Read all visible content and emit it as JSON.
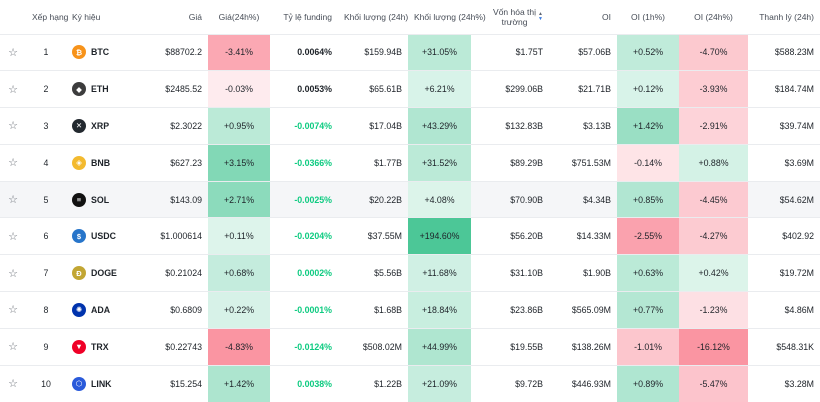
{
  "headers": {
    "rank": "Xếp hạng",
    "symbol": "Ký hiệu",
    "price": "Giá",
    "price_change": "Giá(24h%)",
    "funding": "Tỷ lệ funding",
    "volume": "Khối lượng (24h)",
    "volume_change": "Khối lượng (24h%)",
    "market_cap_line1": "Vốn hóa thị",
    "market_cap_line2": "trường",
    "oi": "OI",
    "oi_1h": "OI (1h%)",
    "oi_24h": "OI (24h%)",
    "liquidation": "Thanh lý (24h)"
  },
  "rows": [
    {
      "rank": "1",
      "symbol": "BTC",
      "price": "$88702.2",
      "price_change": "-3.41%",
      "funding": "0.0064%",
      "volume": "$159.94B",
      "volume_change": "+31.05%",
      "market_cap": "$1.75T",
      "oi": "$57.06B",
      "oi_1h": "+0.52%",
      "oi_24h": "-4.70%",
      "liquidation": "$588.23M"
    },
    {
      "rank": "2",
      "symbol": "ETH",
      "price": "$2485.52",
      "price_change": "-0.03%",
      "funding": "0.0053%",
      "volume": "$65.61B",
      "volume_change": "+6.21%",
      "market_cap": "$299.06B",
      "oi": "$21.71B",
      "oi_1h": "+0.12%",
      "oi_24h": "-3.93%",
      "liquidation": "$184.74M"
    },
    {
      "rank": "3",
      "symbol": "XRP",
      "price": "$2.3022",
      "price_change": "+0.95%",
      "funding": "-0.0074%",
      "volume": "$17.04B",
      "volume_change": "+43.29%",
      "market_cap": "$132.83B",
      "oi": "$3.13B",
      "oi_1h": "+1.42%",
      "oi_24h": "-2.91%",
      "liquidation": "$39.74M"
    },
    {
      "rank": "4",
      "symbol": "BNB",
      "price": "$627.23",
      "price_change": "+3.15%",
      "funding": "-0.0366%",
      "volume": "$1.77B",
      "volume_change": "+31.52%",
      "market_cap": "$89.29B",
      "oi": "$751.53M",
      "oi_1h": "-0.14%",
      "oi_24h": "+0.88%",
      "liquidation": "$3.69M"
    },
    {
      "rank": "5",
      "symbol": "SOL",
      "price": "$143.09",
      "price_change": "+2.71%",
      "funding": "-0.0025%",
      "volume": "$20.22B",
      "volume_change": "+4.08%",
      "market_cap": "$70.90B",
      "oi": "$4.34B",
      "oi_1h": "+0.85%",
      "oi_24h": "-4.45%",
      "liquidation": "$54.62M"
    },
    {
      "rank": "6",
      "symbol": "USDC",
      "price": "$1.000614",
      "price_change": "+0.11%",
      "funding": "-0.0204%",
      "volume": "$37.55M",
      "volume_change": "+194.60%",
      "market_cap": "$56.20B",
      "oi": "$14.33M",
      "oi_1h": "-2.55%",
      "oi_24h": "-4.27%",
      "liquidation": "$402.92"
    },
    {
      "rank": "7",
      "symbol": "DOGE",
      "price": "$0.21024",
      "price_change": "+0.68%",
      "funding": "0.0002%",
      "volume": "$5.56B",
      "volume_change": "+11.68%",
      "market_cap": "$31.10B",
      "oi": "$1.90B",
      "oi_1h": "+0.63%",
      "oi_24h": "+0.42%",
      "liquidation": "$19.72M"
    },
    {
      "rank": "8",
      "symbol": "ADA",
      "price": "$0.6809",
      "price_change": "+0.22%",
      "funding": "-0.0001%",
      "volume": "$1.68B",
      "volume_change": "+18.84%",
      "market_cap": "$23.86B",
      "oi": "$565.09M",
      "oi_1h": "+0.77%",
      "oi_24h": "-1.23%",
      "liquidation": "$4.86M"
    },
    {
      "rank": "9",
      "symbol": "TRX",
      "price": "$0.22743",
      "price_change": "-4.83%",
      "funding": "-0.0124%",
      "volume": "$508.02M",
      "volume_change": "+44.99%",
      "market_cap": "$19.55B",
      "oi": "$138.26M",
      "oi_1h": "-1.01%",
      "oi_24h": "-16.12%",
      "liquidation": "$548.31K"
    },
    {
      "rank": "10",
      "symbol": "LINK",
      "price": "$15.254",
      "price_change": "+1.42%",
      "funding": "0.0038%",
      "volume": "$1.22B",
      "volume_change": "+21.09%",
      "market_cap": "$9.72B",
      "oi": "$446.93M",
      "oi_1h": "+0.89%",
      "oi_24h": "-5.47%",
      "liquidation": "$3.28M"
    }
  ],
  "coin_icons": {
    "BTC": {
      "glyph": "₿",
      "color": "#f7931a"
    },
    "ETH": {
      "glyph": "◆",
      "color": "#3c3c3d"
    },
    "XRP": {
      "glyph": "✕",
      "color": "#23292f"
    },
    "BNB": {
      "glyph": "◈",
      "color": "#f3ba2f"
    },
    "SOL": {
      "glyph": "≡",
      "color": "#111111"
    },
    "USDC": {
      "glyph": "$",
      "color": "#2775ca"
    },
    "DOGE": {
      "glyph": "Ð",
      "color": "#c2a633"
    },
    "ADA": {
      "glyph": "✺",
      "color": "#0033ad"
    },
    "TRX": {
      "glyph": "▼",
      "color": "#ef0027"
    },
    "LINK": {
      "glyph": "⬡",
      "color": "#2a5ada"
    }
  },
  "highlighted_row": "5",
  "colors": {
    "positive_text": "#0ecb81",
    "green_heat_max": "#2ebd85",
    "red_heat_max": "#f6465d",
    "row_highlight": "#f5f6f8"
  },
  "sort_icon": "sort-arrows-icon",
  "favorite_icon": "star-outline-icon"
}
